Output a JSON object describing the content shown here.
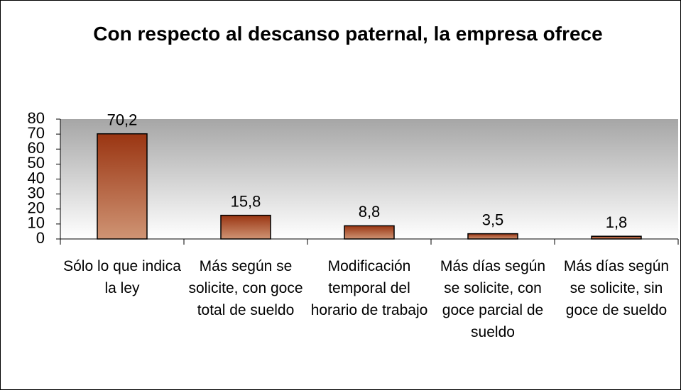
{
  "chart_data": {
    "type": "bar",
    "title": "Con respecto al descanso paternal, la empresa ofrece",
    "categories": [
      "Sólo lo que indica la ley",
      "Más según se solicite, con goce total de sueldo",
      "Modificación temporal del horario de trabajo",
      "Más días según se solicite, con goce parcial de sueldo",
      "Más días según se solicite, sin goce de sueldo"
    ],
    "values": [
      70.2,
      15.8,
      8.8,
      3.5,
      1.8
    ],
    "value_labels": [
      "70,2",
      "15,8",
      "8,8",
      "3,5",
      "1,8"
    ],
    "color": "#a0401c",
    "ylim": [
      0,
      80
    ],
    "yticks": [
      0,
      10,
      20,
      30,
      40,
      50,
      60,
      70,
      80
    ],
    "grid": false
  }
}
